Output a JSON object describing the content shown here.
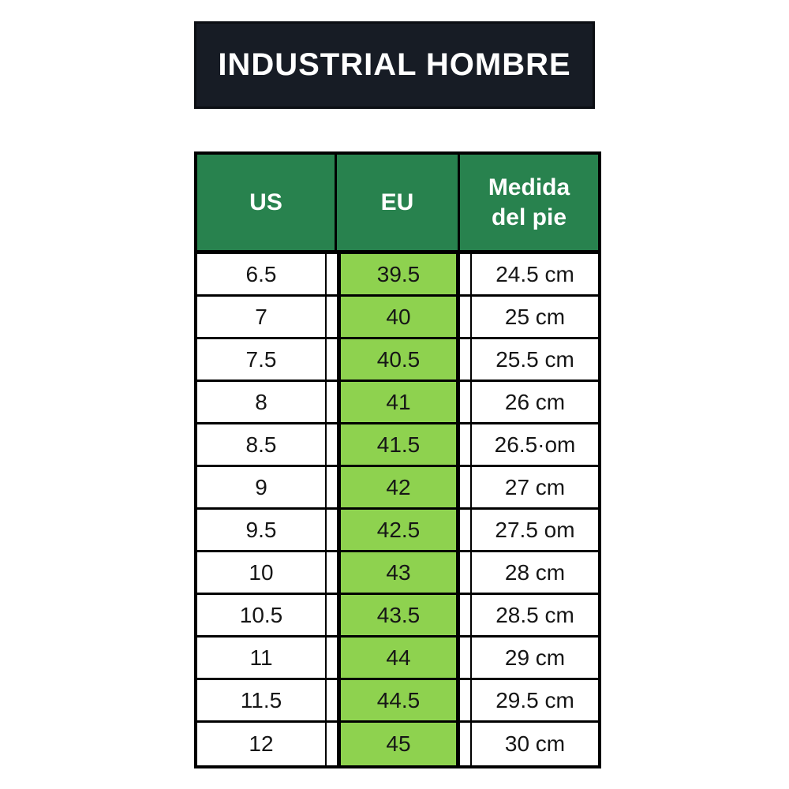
{
  "title_bar": {
    "text": "INDUSTRIAL HOMBRE"
  },
  "colors": {
    "page_bg": "#ffffff",
    "title_bg": "#171c25",
    "title_border": "#0b0e13",
    "header_green": "#28824e",
    "highlight_green": "#8ed24f",
    "border_black": "#000000",
    "text_dark": "#161616",
    "text_white": "#ffffff"
  },
  "chart_data": {
    "type": "table",
    "title": "INDUSTRIAL HOMBRE",
    "columns": [
      "US",
      "EU",
      "Medida del pie"
    ],
    "highlight_column": "EU",
    "rows": [
      [
        "6.5",
        "39.5",
        "24.5 cm"
      ],
      [
        "7",
        "40",
        "25 cm"
      ],
      [
        "7.5",
        "40.5",
        "25.5 cm"
      ],
      [
        "8",
        "41",
        "26 cm"
      ],
      [
        "8.5",
        "41.5",
        "26.5·om"
      ],
      [
        "9",
        "42",
        "27 cm"
      ],
      [
        "9.5",
        "42.5",
        "27.5 om"
      ],
      [
        "10",
        "43",
        "28 cm"
      ],
      [
        "10.5",
        "43.5",
        "28.5 cm"
      ],
      [
        "11",
        "44",
        "29 cm"
      ],
      [
        "11.5",
        "44.5",
        "29.5 cm"
      ],
      [
        "12",
        "45",
        "30 cm"
      ]
    ]
  }
}
